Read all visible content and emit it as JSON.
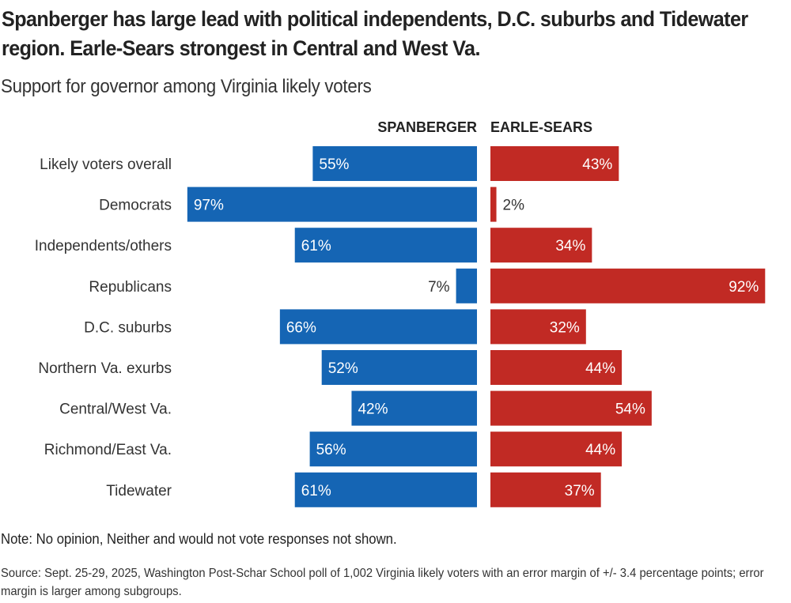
{
  "title": "Spanberger has large lead with political independents, D.C. suburbs and Tidewater region. Earle-Sears strongest in Central and West Va.",
  "subtitle": "Support for governor among Virginia likely voters",
  "note": "Note: No opinion, Neither and would not vote responses not shown.",
  "source": "Source: Sept. 25-29, 2025, Washington Post-Schar School poll of 1,002 Virginia likely voters with an error margin of +/- 3.4 percentage points; error margin is larger among subgroups.",
  "colors": {
    "spanberger": "#1565b4",
    "earle_sears": "#c12a24"
  },
  "chart_data": {
    "type": "bar",
    "orientation": "horizontal-diverging",
    "title": "Spanberger has large lead with political independents, D.C. suburbs and Tidewater region. Earle-Sears strongest in Central and West Va.",
    "subtitle": "Support for governor among Virginia likely voters",
    "xlabel": "",
    "ylabel": "",
    "unit": "%",
    "xlim": [
      0,
      100
    ],
    "grid": false,
    "categories": [
      "Likely voters overall",
      "Democrats",
      "Independents/others",
      "Republicans",
      "D.C. suburbs",
      "Northern Va. exurbs",
      "Central/West Va.",
      "Richmond/East Va.",
      "Tidewater"
    ],
    "series": [
      {
        "name": "SPANBERGER",
        "side": "left",
        "values": [
          55,
          97,
          61,
          7,
          66,
          52,
          42,
          56,
          61
        ]
      },
      {
        "name": "EARLE-SEARS",
        "side": "right",
        "values": [
          43,
          2,
          34,
          92,
          32,
          44,
          54,
          44,
          37
        ]
      }
    ]
  }
}
